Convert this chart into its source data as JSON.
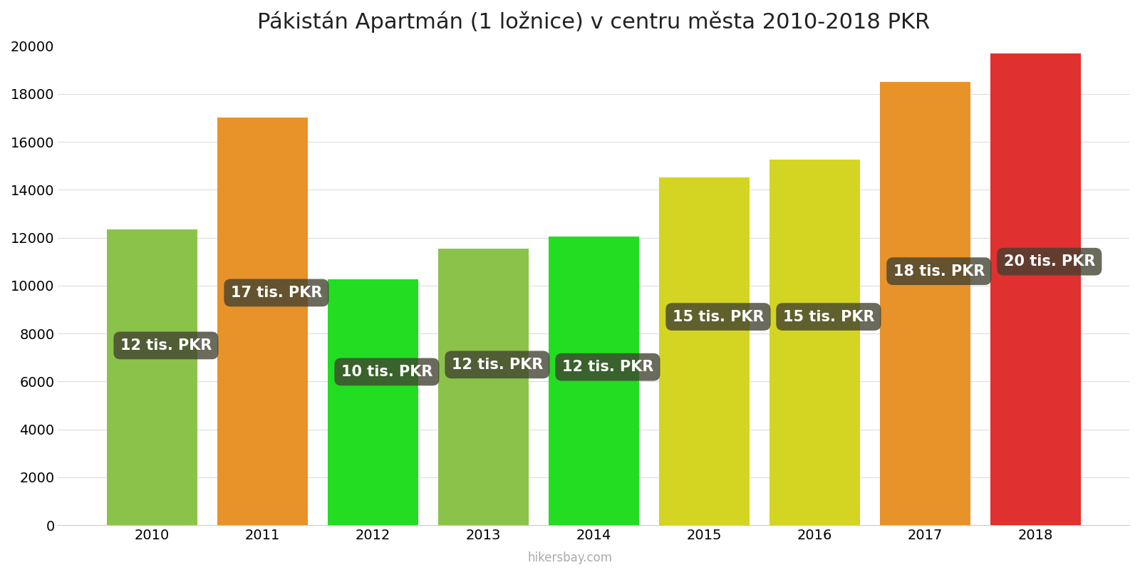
{
  "title": "Pákistán Apartmán (1 ložnice) v centru města 2010-2018 PKR",
  "years": [
    2010,
    2011,
    2012,
    2013,
    2014,
    2015,
    2016,
    2017,
    2018
  ],
  "values": [
    12350,
    17000,
    10250,
    11550,
    12050,
    14500,
    15250,
    18500,
    19700
  ],
  "bar_colors": [
    "#8bc34a",
    "#e8922a",
    "#22dd22",
    "#8bc34a",
    "#22dd22",
    "#d4d422",
    "#d4d422",
    "#e8922a",
    "#e03030"
  ],
  "labels": [
    "12 tis. PKR",
    "17 tis. PKR",
    "10 tis. PKR",
    "12 tis. PKR",
    "12 tis. PKR",
    "15 tis. PKR",
    "15 tis. PKR",
    "18 tis. PKR",
    "20 tis. PKR"
  ],
  "label_y_positions": [
    7500,
    9700,
    6400,
    6700,
    6600,
    8700,
    8700,
    10600,
    11000
  ],
  "ylim": [
    0,
    20000
  ],
  "yticks": [
    0,
    2000,
    4000,
    6000,
    8000,
    10000,
    12000,
    14000,
    16000,
    18000,
    20000
  ],
  "watermark": "hikersbay.com",
  "background_color": "#ffffff",
  "title_fontsize": 22,
  "label_fontsize": 15,
  "tick_fontsize": 14,
  "bar_width": 0.82
}
